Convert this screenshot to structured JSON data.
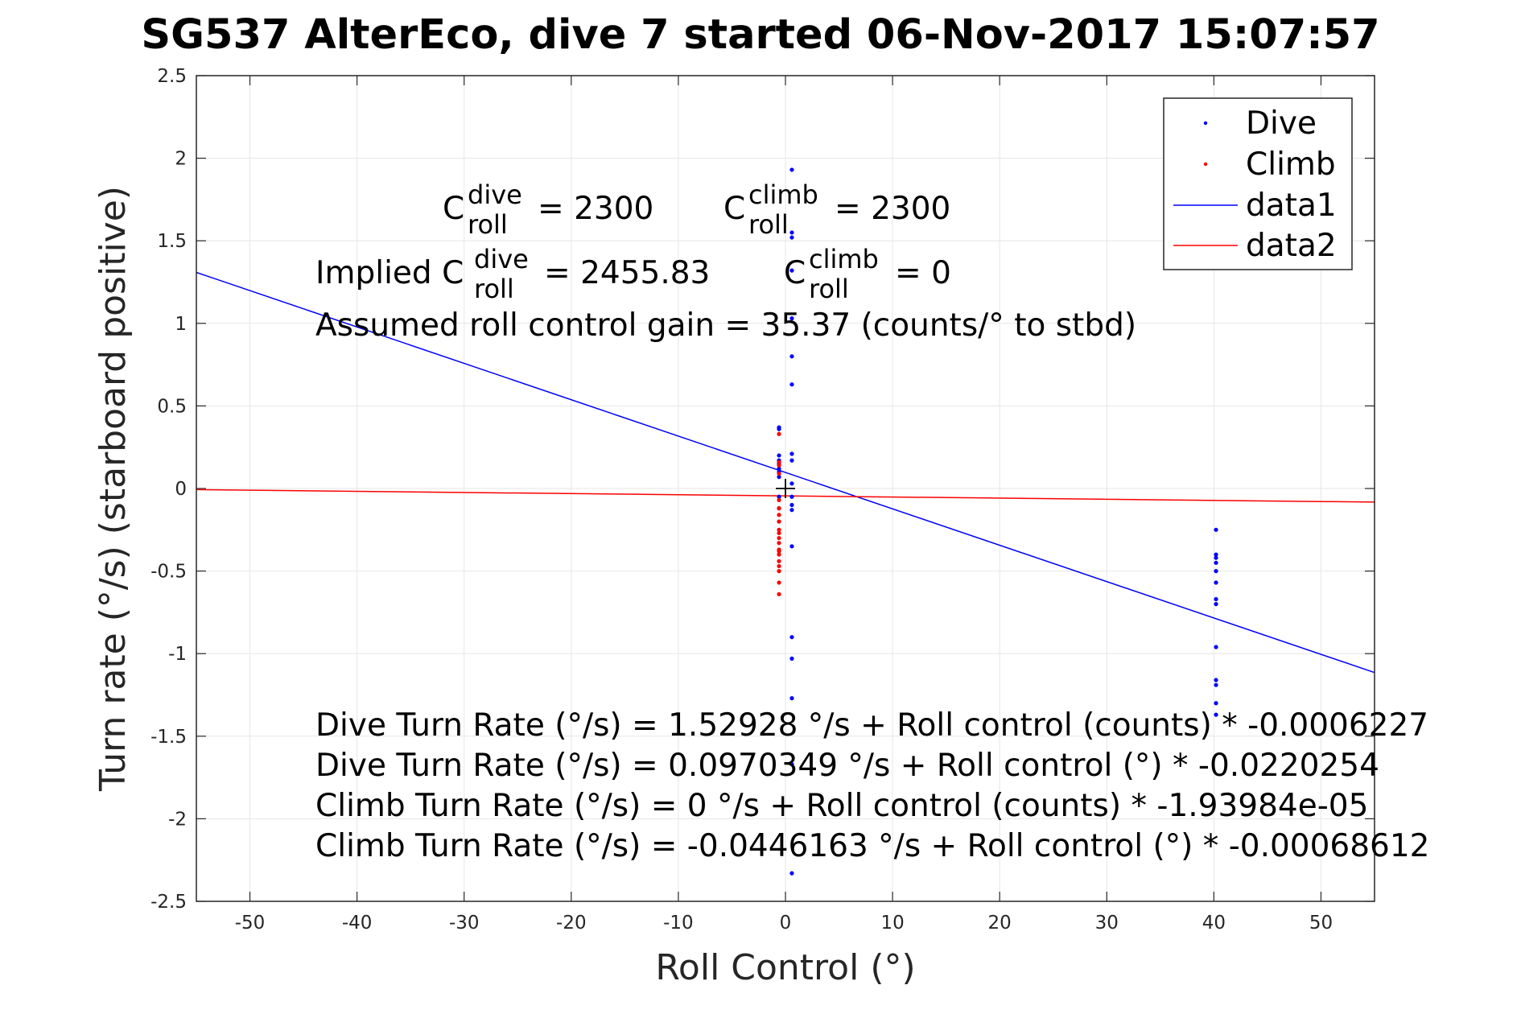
{
  "chart_data": {
    "type": "scatter",
    "title": "SG537 AlterEco, dive 7 started 06-Nov-2017 15:07:57",
    "xlabel": "Roll Control (°)",
    "ylabel": "Turn rate (°/s) (starboard positive)",
    "xlim": [
      -55,
      55
    ],
    "ylim": [
      -2.5,
      2.5
    ],
    "xticks": [
      -50,
      -40,
      -30,
      -20,
      -10,
      0,
      10,
      20,
      30,
      40,
      50
    ],
    "yticks": [
      2.5,
      2,
      1.5,
      1,
      0.5,
      0,
      -0.5,
      -1,
      -1.5,
      -2,
      -2.5
    ],
    "xtick_labels": [
      "-50",
      "-40",
      "-30",
      "-20",
      "-10",
      "0",
      "10",
      "20",
      "30",
      "40",
      "50"
    ],
    "ytick_labels": [
      "2.5",
      "2",
      "1.5",
      "1",
      "0.5",
      "0",
      "-0.5",
      "-1",
      "-1.5",
      "-2",
      "-2.5"
    ],
    "grid": true,
    "legend_position": "top-right",
    "series": [
      {
        "name": "Dive",
        "kind": "points",
        "color": "#0000ff",
        "points": [
          [
            -0.6,
            0.37
          ],
          [
            -0.6,
            0.36
          ],
          [
            -0.6,
            0.2
          ],
          [
            -0.6,
            0.17
          ],
          [
            -0.6,
            0.12
          ],
          [
            -0.6,
            0.1
          ],
          [
            -0.6,
            0.07
          ],
          [
            -0.6,
            -0.05
          ],
          [
            -0.6,
            -0.12
          ],
          [
            -0.6,
            -0.2
          ],
          [
            -0.6,
            0.15
          ],
          [
            0.6,
            1.93
          ],
          [
            0.6,
            1.55
          ],
          [
            0.6,
            1.52
          ],
          [
            0.6,
            1.32
          ],
          [
            0.6,
            1.03
          ],
          [
            0.6,
            0.8
          ],
          [
            0.6,
            0.63
          ],
          [
            0.6,
            0.21
          ],
          [
            0.6,
            0.17
          ],
          [
            0.6,
            0.03
          ],
          [
            0.6,
            -0.05
          ],
          [
            0.6,
            -0.1
          ],
          [
            0.6,
            -0.13
          ],
          [
            0.6,
            -0.35
          ],
          [
            0.6,
            -0.9
          ],
          [
            0.6,
            -1.03
          ],
          [
            0.6,
            -1.27
          ],
          [
            0.6,
            -1.67
          ],
          [
            0.6,
            -2.33
          ],
          [
            40.2,
            -0.25
          ],
          [
            40.2,
            -0.4
          ],
          [
            40.2,
            -0.42
          ],
          [
            40.2,
            -0.45
          ],
          [
            40.2,
            -0.5
          ],
          [
            40.2,
            -0.57
          ],
          [
            40.2,
            -0.67
          ],
          [
            40.2,
            -0.7
          ],
          [
            40.2,
            -0.96
          ],
          [
            40.2,
            -1.16
          ],
          [
            40.2,
            -1.19
          ],
          [
            40.2,
            -1.3
          ],
          [
            40.2,
            -1.37
          ]
        ]
      },
      {
        "name": "Climb",
        "kind": "points",
        "color": "#ff0000",
        "points": [
          [
            -0.6,
            0.33
          ],
          [
            -0.6,
            0.16
          ],
          [
            -0.6,
            0.14
          ],
          [
            -0.6,
            0.09
          ],
          [
            -0.6,
            -0.07
          ],
          [
            -0.6,
            -0.12
          ],
          [
            -0.6,
            -0.16
          ],
          [
            -0.6,
            -0.2
          ],
          [
            -0.6,
            -0.25
          ],
          [
            -0.6,
            -0.27
          ],
          [
            -0.6,
            -0.3
          ],
          [
            -0.6,
            -0.33
          ],
          [
            -0.6,
            -0.37
          ],
          [
            -0.6,
            -0.38
          ],
          [
            -0.6,
            -0.4
          ],
          [
            -0.6,
            -0.44
          ],
          [
            -0.6,
            -0.47
          ],
          [
            -0.6,
            -0.5
          ],
          [
            -0.6,
            -0.57
          ],
          [
            -0.6,
            -0.64
          ]
        ]
      },
      {
        "name": "data1",
        "kind": "line",
        "color": "#0000ff",
        "x": [
          -55,
          55
        ],
        "y": [
          1.3085,
          -1.1145
        ]
      },
      {
        "name": "data2",
        "kind": "line",
        "color": "#ff0000",
        "x": [
          -55,
          55
        ],
        "y": [
          -0.0069,
          -0.0824
        ]
      }
    ],
    "marker": {
      "x": 0,
      "y": 0
    },
    "annotations": {
      "c_dive": {
        "prefix": "C",
        "sup": "dive",
        "sub": "roll",
        "value": "= 2300"
      },
      "c_climb": {
        "prefix": "C",
        "sup": "climb",
        "sub": "roll",
        "value": "= 2300"
      },
      "implied_dive": {
        "prefix": "Implied C",
        "sup": "dive",
        "sub": "roll",
        "value": "= 2455.83"
      },
      "implied_climb": {
        "prefix": "C",
        "sup": "climb",
        "sub": "roll",
        "value": "= 0"
      },
      "gain": "Assumed roll control gain = 35.37 (counts/° to stbd)",
      "fit_lines": [
        "Dive Turn Rate (°/s) = 1.52928 °/s + Roll control (counts) * -0.0006227",
        "Dive Turn Rate (°/s) = 0.0970349 °/s + Roll control (°) * -0.0220254",
        "Climb Turn Rate (°/s) = 0 °/s + Roll control (counts) * -1.93984e-05",
        "Climb Turn Rate (°/s) = -0.0446163 °/s + Roll control (°) * -0.00068612"
      ]
    }
  }
}
